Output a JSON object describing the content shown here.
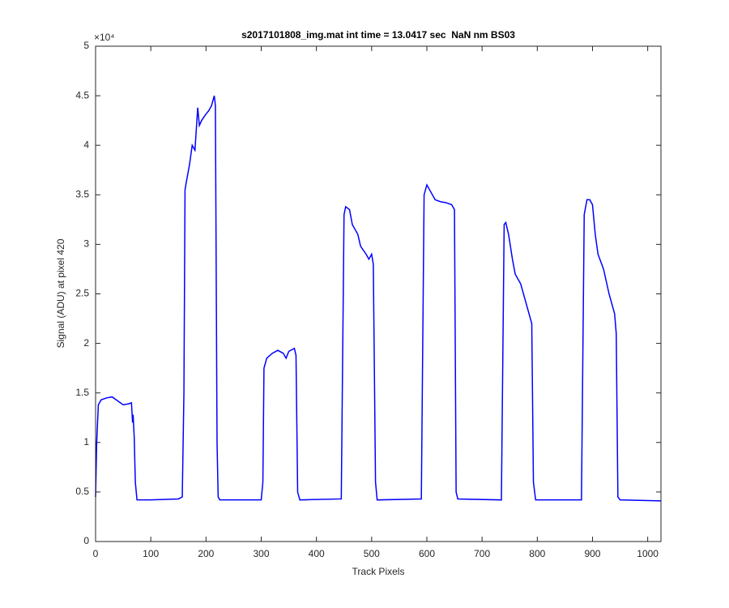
{
  "chart_data": {
    "type": "line",
    "title": "s2017101808_img.mat int time = 13.0417 sec  NaN nm BS03",
    "x_label": "Track Pixels",
    "y_label": "Signal (ADU) at pixel 420",
    "y_exponent_label": "×10⁴",
    "color": "#0000ff",
    "x": [
      0,
      2,
      5,
      10,
      20,
      30,
      40,
      50,
      60,
      65,
      67,
      68,
      70,
      72,
      75,
      100,
      150,
      157,
      160,
      162,
      165,
      170,
      175,
      180,
      185,
      188,
      192,
      198,
      205,
      210,
      215,
      217,
      220,
      222,
      225,
      300,
      303,
      305,
      310,
      320,
      330,
      340,
      345,
      350,
      360,
      363,
      366,
      370,
      445,
      450,
      453,
      460,
      465,
      470,
      475,
      480,
      490,
      495,
      500,
      503,
      507,
      510,
      590,
      595,
      600,
      605,
      615,
      625,
      635,
      645,
      650,
      653,
      656,
      735,
      740,
      743,
      748,
      755,
      760,
      770,
      780,
      785,
      790,
      793,
      797,
      880,
      885,
      890,
      895,
      900,
      905,
      910,
      920,
      930,
      935,
      940,
      943,
      946,
      950,
      1024
    ],
    "values": [
      0.45,
      1.0,
      1.38,
      1.43,
      1.45,
      1.46,
      1.42,
      1.38,
      1.39,
      1.4,
      1.2,
      1.28,
      1.05,
      0.6,
      0.42,
      0.42,
      0.43,
      0.45,
      1.5,
      3.55,
      3.65,
      3.8,
      4.0,
      3.95,
      4.38,
      4.2,
      4.25,
      4.3,
      4.35,
      4.4,
      4.5,
      4.4,
      1.0,
      0.45,
      0.42,
      0.42,
      0.6,
      1.75,
      1.85,
      1.9,
      1.93,
      1.9,
      1.85,
      1.92,
      1.95,
      1.88,
      0.5,
      0.42,
      0.43,
      3.3,
      3.38,
      3.35,
      3.2,
      3.15,
      3.1,
      2.98,
      2.9,
      2.85,
      2.9,
      2.8,
      0.6,
      0.42,
      0.43,
      3.5,
      3.6,
      3.55,
      3.45,
      3.43,
      3.42,
      3.4,
      3.35,
      0.5,
      0.43,
      0.42,
      3.2,
      3.22,
      3.1,
      2.85,
      2.7,
      2.6,
      2.4,
      2.3,
      2.2,
      0.6,
      0.42,
      0.42,
      3.3,
      3.45,
      3.45,
      3.4,
      3.1,
      2.9,
      2.75,
      2.5,
      2.4,
      2.3,
      2.1,
      0.45,
      0.42,
      0.41
    ],
    "xlim": [
      0,
      1024
    ],
    "xticks": [
      0,
      100,
      200,
      300,
      400,
      500,
      600,
      700,
      800,
      900,
      1000
    ],
    "ylim": [
      0,
      5
    ],
    "yticks": [
      0,
      0.5,
      1,
      1.5,
      2,
      2.5,
      3,
      3.5,
      4,
      4.5,
      5
    ]
  }
}
